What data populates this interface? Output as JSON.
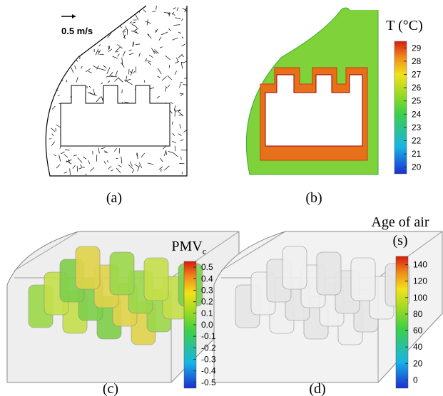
{
  "panels": [
    {
      "label": "(a)",
      "scale_label": "0.5 m/s"
    },
    {
      "label": "(b)",
      "colorbar": {
        "title": "T (°C)",
        "ticks": [
          "29",
          "28",
          "27",
          "26",
          "25",
          "24",
          "23",
          "22",
          "21",
          "20"
        ]
      }
    },
    {
      "label": "(c)",
      "colorbar": {
        "title": "PMV",
        "title_sub": "c",
        "ticks": [
          "0.5",
          "0.4",
          "0.3",
          "0.2",
          "0.1",
          "0.0",
          "-0.1",
          "-0.2",
          "-0.3",
          "-0.4",
          "-0.5"
        ]
      }
    },
    {
      "label": "(d)",
      "colorbar": {
        "title": "Age of air",
        "title_line2": "(s)",
        "ticks": [
          "140",
          "120",
          "100",
          "80",
          "60",
          "40",
          "20",
          "0"
        ]
      }
    }
  ]
}
